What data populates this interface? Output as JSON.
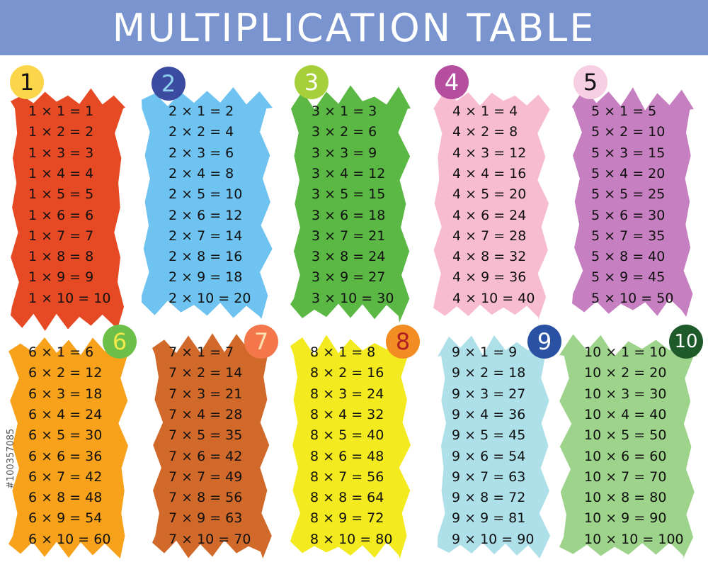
{
  "title": "MULTIPLICATION TABLE",
  "watermark_id": "#100357085",
  "header_color": "#7a94cf",
  "tables": [
    {
      "number": "1",
      "panel_color": "#e64a25",
      "badge_color": "#fbd54a",
      "badge_text_color": "#111111",
      "lines": [
        "1 × 1 = 1",
        "1 × 2 = 2",
        "1 × 3 = 3",
        "1 × 4 = 4",
        "1 × 5 = 5",
        "1 × 6 = 6",
        "1 × 7 = 7",
        "1 × 8 = 8",
        "1 × 9 = 9",
        "1 × 10 = 10"
      ]
    },
    {
      "number": "2",
      "panel_color": "#6ec3f0",
      "badge_color": "#3b4ca0",
      "badge_text_color": "#8fd3f0",
      "lines": [
        "2 × 1 = 2",
        "2 × 2 = 4",
        "2 × 3 = 6",
        "2 × 4 = 8",
        "2 × 5 = 10",
        "2 × 6 = 12",
        "2 × 7 = 14",
        "2 × 8 = 16",
        "2 × 9 = 18",
        "2 × 10 = 20"
      ]
    },
    {
      "number": "3",
      "panel_color": "#5bb845",
      "badge_color": "#a6cf3a",
      "badge_text_color": "#ffffff",
      "lines": [
        "3 × 1 = 3",
        "3 × 2 = 6",
        "3 × 3 = 9",
        "3 × 4 = 12",
        "3 × 5 = 15",
        "3 × 6 = 18",
        "3 × 7 = 21",
        "3 × 8 = 24",
        "3 × 9 = 27",
        "3 × 10 = 30"
      ]
    },
    {
      "number": "4",
      "panel_color": "#f7bcd0",
      "badge_color": "#b64ea0",
      "badge_text_color": "#ffffff",
      "lines": [
        "4 × 1 = 4",
        "4 × 2 = 8",
        "4 × 3 = 12",
        "4 × 4 = 16",
        "4 × 5 = 20",
        "4 × 6 = 24",
        "4 × 7 = 28",
        "4 × 8 = 32",
        "4 × 9 = 36",
        "4 × 10 = 40"
      ]
    },
    {
      "number": "5",
      "panel_color": "#c67fc0",
      "badge_color": "#f6d0e2",
      "badge_text_color": "#111111",
      "lines": [
        "5 × 1 = 5",
        "5 × 2 = 10",
        "5 × 3 = 15",
        "5 × 4 = 20",
        "5 × 5 = 25",
        "5 × 6 = 30",
        "5 × 7 = 35",
        "5 × 8 = 40",
        "5 × 9 = 45",
        "5 × 10 = 50"
      ]
    },
    {
      "number": "6",
      "panel_color": "#f8a21b",
      "badge_color": "#6cbf48",
      "badge_text_color": "#f4e94a",
      "lines": [
        "6 × 1 = 6",
        "6 × 2 = 12",
        "6 × 3 = 18",
        "6 × 4 = 24",
        "6 × 5 = 30",
        "6 × 6 = 36",
        "6 × 7 = 42",
        "6 × 8 = 48",
        "6 × 9 = 54",
        "6 × 10 = 60"
      ]
    },
    {
      "number": "7",
      "panel_color": "#d1692a",
      "badge_color": "#f3774a",
      "badge_text_color": "#fde0b0",
      "lines": [
        "7 × 1 = 7",
        "7 × 2 = 14",
        "7 × 3 = 21",
        "7 × 4 = 28",
        "7 × 5 = 35",
        "7 × 6 = 42",
        "7 × 7 = 49",
        "7 × 8 = 56",
        "7 × 9 = 63",
        "7 × 10 = 70"
      ]
    },
    {
      "number": "8",
      "panel_color": "#f3ea1f",
      "badge_color": "#f28d23",
      "badge_text_color": "#b01e23",
      "lines": [
        "8 × 1 = 8",
        "8 × 2 = 16",
        "8 × 3 = 24",
        "8 × 4 = 32",
        "8 × 5 = 40",
        "8 × 6 = 48",
        "8 × 7 = 56",
        "8 × 8 = 64",
        "8 × 9 = 72",
        "8 × 10 = 80"
      ]
    },
    {
      "number": "9",
      "panel_color": "#aee0ea",
      "badge_color": "#2a52a4",
      "badge_text_color": "#ffffff",
      "lines": [
        "9 × 1 = 9",
        "9 × 2 = 18",
        "9 × 3 = 27",
        "9 × 4 = 36",
        "9 × 5 = 45",
        "9 × 6 = 54",
        "9 × 7 = 63",
        "9 × 8 = 72",
        "9 × 9 = 81",
        "9 × 10 = 90"
      ]
    },
    {
      "number": "10",
      "panel_color": "#9dd38a",
      "badge_color": "#1f5a2a",
      "badge_text_color": "#ffffff",
      "lines": [
        "10 × 1 = 10",
        "10 × 2 = 20",
        "10 × 3 = 30",
        "10 × 4 = 40",
        "10 × 5 = 50",
        "10 × 6 = 60",
        "10 × 7 = 70",
        "10 × 8 = 80",
        "10 × 9 = 90",
        "10 × 10 = 100"
      ]
    }
  ]
}
